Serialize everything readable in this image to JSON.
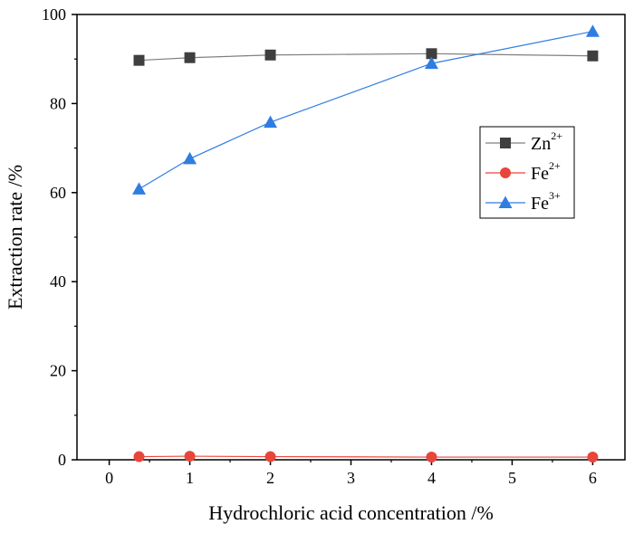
{
  "chart_data": {
    "type": "line",
    "title": "",
    "xlabel": "Hydrochloric acid concentration /%",
    "ylabel": "Extraction rate /%",
    "xlim": [
      -0.4,
      6.4
    ],
    "ylim": [
      0,
      100
    ],
    "xticks": [
      0,
      1,
      2,
      3,
      4,
      5,
      6
    ],
    "yticks": [
      0,
      20,
      40,
      60,
      80,
      100
    ],
    "grid": false,
    "legend_position": "right",
    "series": [
      {
        "name": "Zn",
        "superscript": "2+",
        "marker": "square",
        "color": "#3f3f3f",
        "line_color": "#808080",
        "x": [
          0.37,
          1,
          2,
          4,
          6
        ],
        "y": [
          89.7,
          90.3,
          90.9,
          91.2,
          90.7
        ]
      },
      {
        "name": "Fe",
        "superscript": "2+",
        "marker": "circle",
        "color": "#e8463a",
        "line_color": "#e8463a",
        "x": [
          0.37,
          1,
          2,
          4,
          6
        ],
        "y": [
          0.7,
          0.8,
          0.7,
          0.6,
          0.6
        ]
      },
      {
        "name": "Fe",
        "superscript": "3+",
        "marker": "triangle",
        "color": "#2f7de1",
        "line_color": "#2f7de1",
        "x": [
          0.37,
          1,
          2,
          4,
          6
        ],
        "y": [
          60.8,
          67.6,
          75.8,
          89.0,
          96.2
        ]
      }
    ]
  }
}
